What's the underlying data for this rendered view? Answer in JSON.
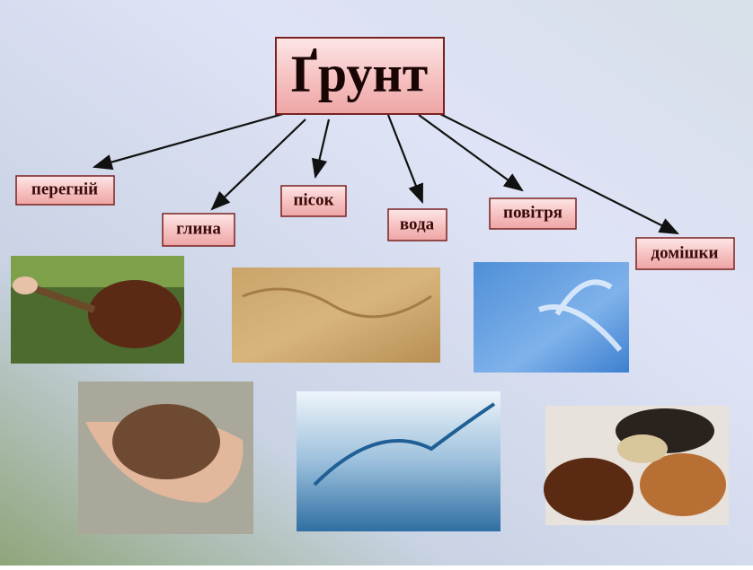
{
  "title": "Ґрунт",
  "nodes": [
    {
      "label": "перегній"
    },
    {
      "label": "глина"
    },
    {
      "label": "пісок"
    },
    {
      "label": "вода"
    },
    {
      "label": "повітря"
    },
    {
      "label": "домішки"
    }
  ]
}
